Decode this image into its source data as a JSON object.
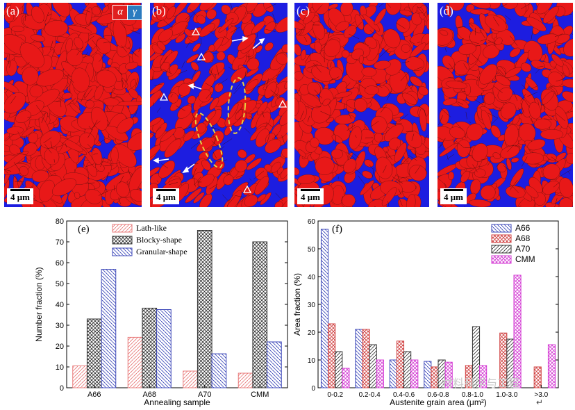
{
  "micro_panels": [
    {
      "label": "(a)",
      "scale": "4 μm",
      "ferrite_ratio": 0.82
    },
    {
      "label": "(b)",
      "scale": "4 μm",
      "ferrite_ratio": 0.55
    },
    {
      "label": "(c)",
      "scale": "4 μm",
      "ferrite_ratio": 0.62
    },
    {
      "label": "(d)",
      "scale": "4 μm",
      "ferrite_ratio": 0.6
    }
  ],
  "phase_legend": {
    "alpha": "α",
    "gamma": "γ",
    "alpha_color": "#e02020",
    "gamma_color": "#2b7bbf"
  },
  "colors": {
    "ferrite": "#e81818",
    "austenite": "#1d1de0"
  },
  "watermark": "材料科学与工程",
  "return_mark": "↵",
  "chart_data": [
    {
      "type": "bar",
      "panel_label": "(e)",
      "categories": [
        "A66",
        "A68",
        "A70",
        "CMM"
      ],
      "series": [
        {
          "name": "Lath-like",
          "values": [
            10.5,
            24.2,
            8.0,
            7.0
          ],
          "color": "#e87a7a",
          "hatch": "lath"
        },
        {
          "name": "Blocky-shape",
          "values": [
            33.0,
            38.2,
            75.5,
            70.0
          ],
          "color": "#333333",
          "hatch": "cross"
        },
        {
          "name": "Granular-shape",
          "values": [
            56.8,
            37.5,
            16.3,
            22.0
          ],
          "color": "#3b46b8",
          "hatch": "back"
        }
      ],
      "xlabel": "Annealing sample",
      "ylabel": "Number fraction (%)",
      "ylim": [
        0,
        80
      ],
      "yticks": [
        0,
        10,
        20,
        30,
        40,
        50,
        60,
        70,
        80
      ],
      "legend_position": "top-left"
    },
    {
      "type": "bar",
      "panel_label": "(f)",
      "categories": [
        "0-0.2",
        "0.2-0.4",
        "0.4-0.6",
        "0.6-0.8",
        "0.8-1.0",
        "1.0-3.0",
        ">3.0"
      ],
      "series": [
        {
          "name": "A66",
          "values": [
            57,
            21,
            10,
            9.5,
            0,
            0,
            0
          ],
          "color": "#3b46b8",
          "hatch": "back"
        },
        {
          "name": "A68",
          "values": [
            23,
            21,
            16.8,
            7.5,
            8,
            19.7,
            7.5
          ],
          "color": "#d04040",
          "hatch": "cross"
        },
        {
          "name": "A70",
          "values": [
            13,
            15.5,
            13,
            10,
            22,
            17.5,
            0
          ],
          "color": "#333333",
          "hatch": "lath"
        },
        {
          "name": "CMM",
          "values": [
            7,
            10,
            10,
            9.2,
            8,
            40.5,
            15.5
          ],
          "color": "#d43ad4",
          "hatch": "cross"
        }
      ],
      "xlabel": "Austenite grain area (μm²)",
      "ylabel": "Area fraction (%)",
      "ylim": [
        0,
        60
      ],
      "yticks": [
        0,
        10,
        20,
        30,
        40,
        50,
        60
      ],
      "legend_position": "top-right"
    }
  ]
}
